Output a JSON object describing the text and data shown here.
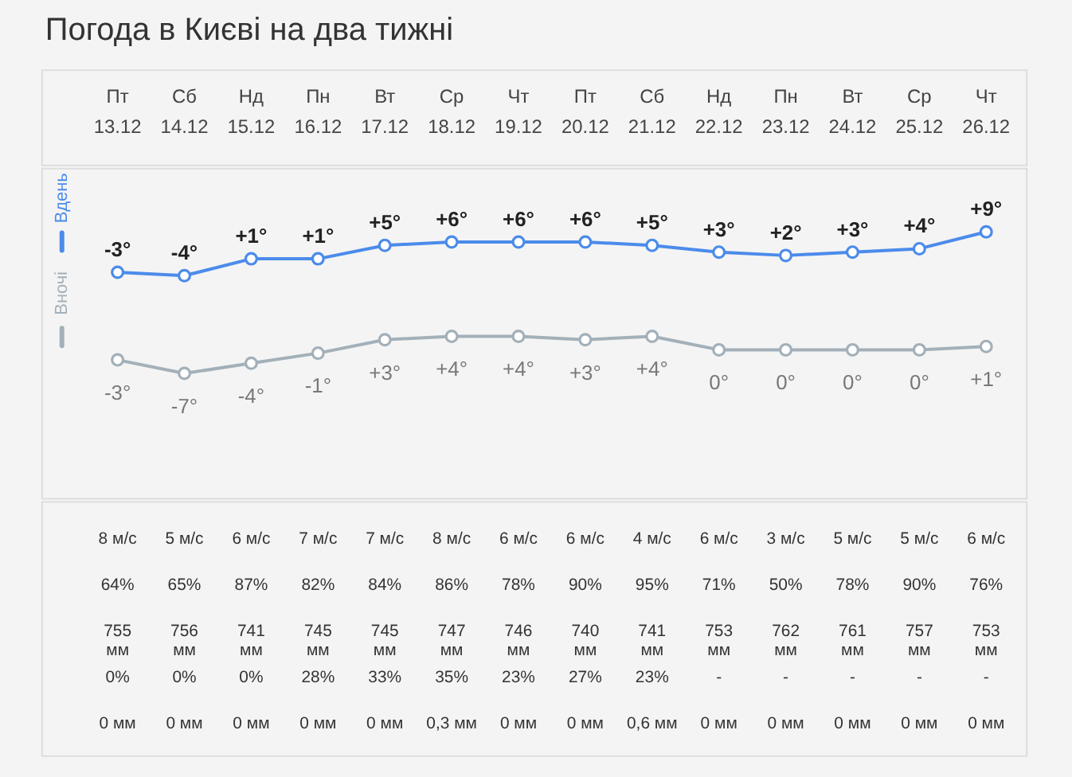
{
  "chart_data": {
    "type": "line",
    "title": "Погода в Києві на два тижні",
    "categories": [
      "Пт\n13.12",
      "Сб\n14.12",
      "Нд\n15.12",
      "Пн\n16.12",
      "Вт\n17.12",
      "Ср\n18.12",
      "Чт\n19.12",
      "Пт\n20.12",
      "Сб\n21.12",
      "Нд\n22.12",
      "Пн\n23.12",
      "Вт\n24.12",
      "Ср\n25.12",
      "Чт\n26.12"
    ],
    "series": [
      {
        "name": "Вдень",
        "color": "#4b8bea",
        "values": [
          -3,
          -4,
          1,
          1,
          5,
          6,
          6,
          6,
          5,
          3,
          2,
          3,
          4,
          9
        ],
        "value_labels": [
          "-3°",
          "-4°",
          "+1°",
          "+1°",
          "+5°",
          "+6°",
          "+6°",
          "+6°",
          "+5°",
          "+3°",
          "+2°",
          "+3°",
          "+4°",
          "+9°"
        ]
      },
      {
        "name": "Вночі",
        "axis": "y2",
        "color": "#a3b0b9",
        "values": [
          -3,
          -7,
          -4,
          -1,
          3,
          4,
          4,
          3,
          4,
          0,
          0,
          0,
          0,
          1
        ],
        "value_labels": [
          "-3°",
          "-7°",
          "-4°",
          "-1°",
          "+3°",
          "+4°",
          "+4°",
          "+3°",
          "+4°",
          "0°",
          "0°",
          "0°",
          "0°",
          "+1°"
        ]
      }
    ],
    "ylim": [
      -70,
      28
    ],
    "y2lim": [
      -44,
      54
    ],
    "tick_labels": "x",
    "legend": "left",
    "marker": "circle",
    "line_style": "solid",
    "annotations": [
      "8 м/с",
      "5 м/с",
      "6 м/с",
      "7 м/с",
      "7 м/с",
      "8 м/с",
      "6 м/с",
      "6 м/с",
      "4 м/с",
      "6 м/с",
      "3 м/с",
      "5 м/с",
      "5 м/с",
      "6 м/с",
      "64%",
      "65%",
      "87%",
      "82%",
      "84%",
      "86%",
      "78%",
      "90%",
      "95%",
      "71%",
      "50%",
      "78%",
      "90%",
      "76%",
      "755\nмм",
      "756\nмм",
      "741\nмм",
      "745\nмм",
      "745\nмм",
      "747\nмм",
      "746\nмм",
      "740\nмм",
      "741\nмм",
      "753\nмм",
      "762\nмм",
      "761\nмм",
      "757\nмм",
      "753\nмм",
      "0%",
      "0%",
      "0%",
      "28%",
      "33%",
      "35%",
      "23%",
      "27%",
      "23%",
      "-",
      "-",
      "-",
      "-",
      "-",
      "0 мм",
      "0 мм",
      "0 мм",
      "0 мм",
      "0 мм",
      "0,3 мм",
      "0 мм",
      "0 мм",
      "0,6 мм",
      "0 мм",
      "0 мм",
      "0 мм",
      "0 мм",
      "0 мм"
    ]
  }
}
